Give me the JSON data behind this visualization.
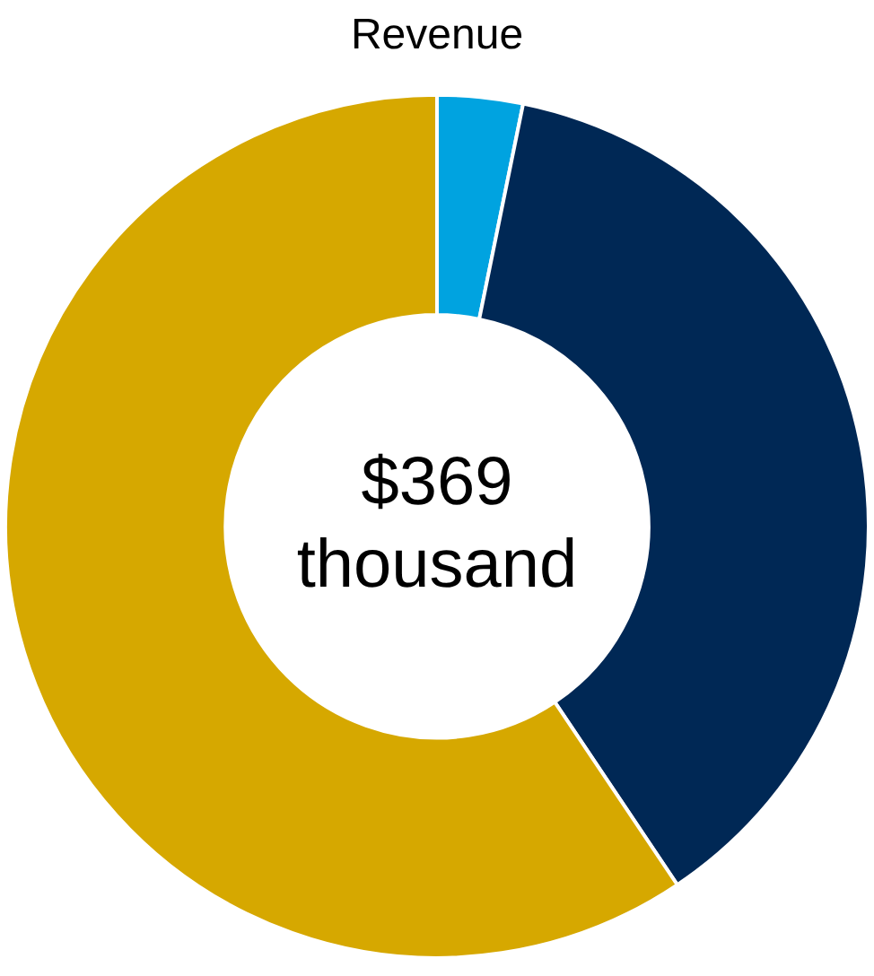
{
  "chart_data": {
    "type": "donut",
    "title": "Revenue",
    "categories": [
      null,
      null,
      null
    ],
    "values": [
      3.2,
      37.4,
      59.4
    ],
    "colors": [
      "#00a3e0",
      "#002855",
      "#d6a800"
    ],
    "annotations": [
      "$369 thousand"
    ],
    "legend": false
  }
}
